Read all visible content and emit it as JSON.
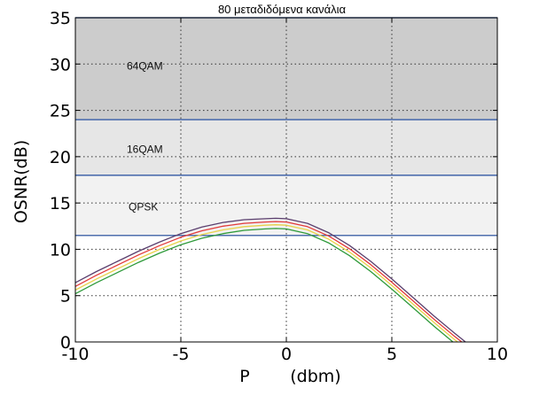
{
  "chart_data": {
    "type": "line",
    "title": "80 μεταδιδόμενα κανάλια",
    "xlabel_parts": [
      "P",
      "(dbm)"
    ],
    "ylabel": "OSNR(dB)",
    "xlim": [
      -10,
      10
    ],
    "ylim": [
      0,
      35
    ],
    "xticks": [
      "-10",
      "-5",
      "0",
      "5",
      "10"
    ],
    "yticks": [
      "0",
      "5",
      "10",
      "15",
      "20",
      "25",
      "30",
      "35"
    ],
    "grid": "on (dotted)",
    "regions": [
      {
        "label": "64QAM",
        "from": 24,
        "to": 35,
        "color": "#cccccc"
      },
      {
        "label": "16QAM",
        "from": 18,
        "to": 24,
        "color": "#e6e6e6"
      },
      {
        "label": "QPSK",
        "from": 11.5,
        "to": 18,
        "color": "#f2f2f2"
      }
    ],
    "thresholds": [
      {
        "y": 35,
        "color": "#4f6fae"
      },
      {
        "y": 24,
        "color": "#4f6fae"
      },
      {
        "y": 18,
        "color": "#4f6fae"
      },
      {
        "y": 11.5,
        "color": "#4f6fae"
      }
    ],
    "x": [
      -10,
      -9,
      -8,
      -7,
      -6,
      -5,
      -4,
      -3,
      -2,
      -1,
      -0.5,
      0,
      1,
      2,
      3,
      4,
      5,
      6,
      7,
      8,
      8.6,
      9.0
    ],
    "series": [
      {
        "color": "#5a3f6e",
        "values": [
          6.4,
          7.6,
          8.7,
          9.8,
          10.8,
          11.7,
          12.4,
          12.9,
          13.2,
          13.3,
          13.35,
          13.3,
          12.8,
          11.8,
          10.4,
          8.7,
          6.8,
          4.8,
          2.8,
          0.9,
          -0.2,
          -0.9
        ]
      },
      {
        "color": "#e23a3a",
        "values": [
          6.0,
          7.2,
          8.3,
          9.4,
          10.4,
          11.3,
          12.0,
          12.5,
          12.8,
          12.95,
          13.0,
          12.95,
          12.45,
          11.45,
          10.05,
          8.35,
          6.45,
          4.45,
          2.45,
          0.55,
          -0.5,
          -1.2
        ]
      },
      {
        "color": "#e8d24a",
        "values": [
          5.6,
          6.8,
          7.9,
          9.0,
          10.0,
          10.9,
          11.6,
          12.1,
          12.45,
          12.6,
          12.65,
          12.6,
          12.1,
          11.1,
          9.7,
          8.0,
          6.1,
          4.1,
          2.1,
          0.2,
          -0.8,
          -1.5
        ]
      },
      {
        "color": "#2e9a3a",
        "values": [
          5.2,
          6.4,
          7.5,
          8.6,
          9.6,
          10.5,
          11.2,
          11.7,
          12.05,
          12.2,
          12.25,
          12.2,
          11.7,
          10.7,
          9.3,
          7.6,
          5.7,
          3.7,
          1.7,
          -0.2,
          -1.2,
          -1.9
        ]
      }
    ]
  }
}
